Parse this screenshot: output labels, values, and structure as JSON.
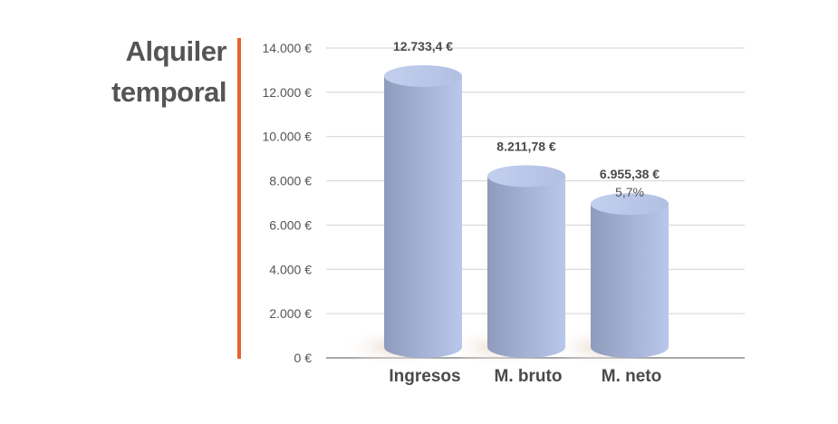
{
  "title": {
    "line1": "Alquiler",
    "line2": "temporal"
  },
  "colors": {
    "accent": "#e8622c",
    "bar_light": "#b4c3e6",
    "bar_dark": "#8d9bbd",
    "grid": "#cfcfcf",
    "text": "#4a4a4a"
  },
  "chart_data": {
    "type": "bar",
    "style": "3d-cylinder",
    "categories": [
      "Ingresos",
      "M. bruto",
      "M. neto"
    ],
    "values": [
      12733.4,
      8211.78,
      6955.38
    ],
    "value_labels": [
      "12.733,4 €",
      "8.211,78 €",
      "6.955,38 €"
    ],
    "sub_labels": [
      "",
      "",
      "5,7%"
    ],
    "ylim": [
      0,
      14000
    ],
    "yticks": [
      0,
      2000,
      4000,
      6000,
      8000,
      10000,
      12000,
      14000
    ],
    "ytick_labels": [
      "0 €",
      "2.000 €",
      "4.000 €",
      "6.000 €",
      "8.000 €",
      "10.000 €",
      "12.000 €",
      "14.000 €"
    ],
    "grid": true,
    "xlabel": "",
    "ylabel": ""
  }
}
